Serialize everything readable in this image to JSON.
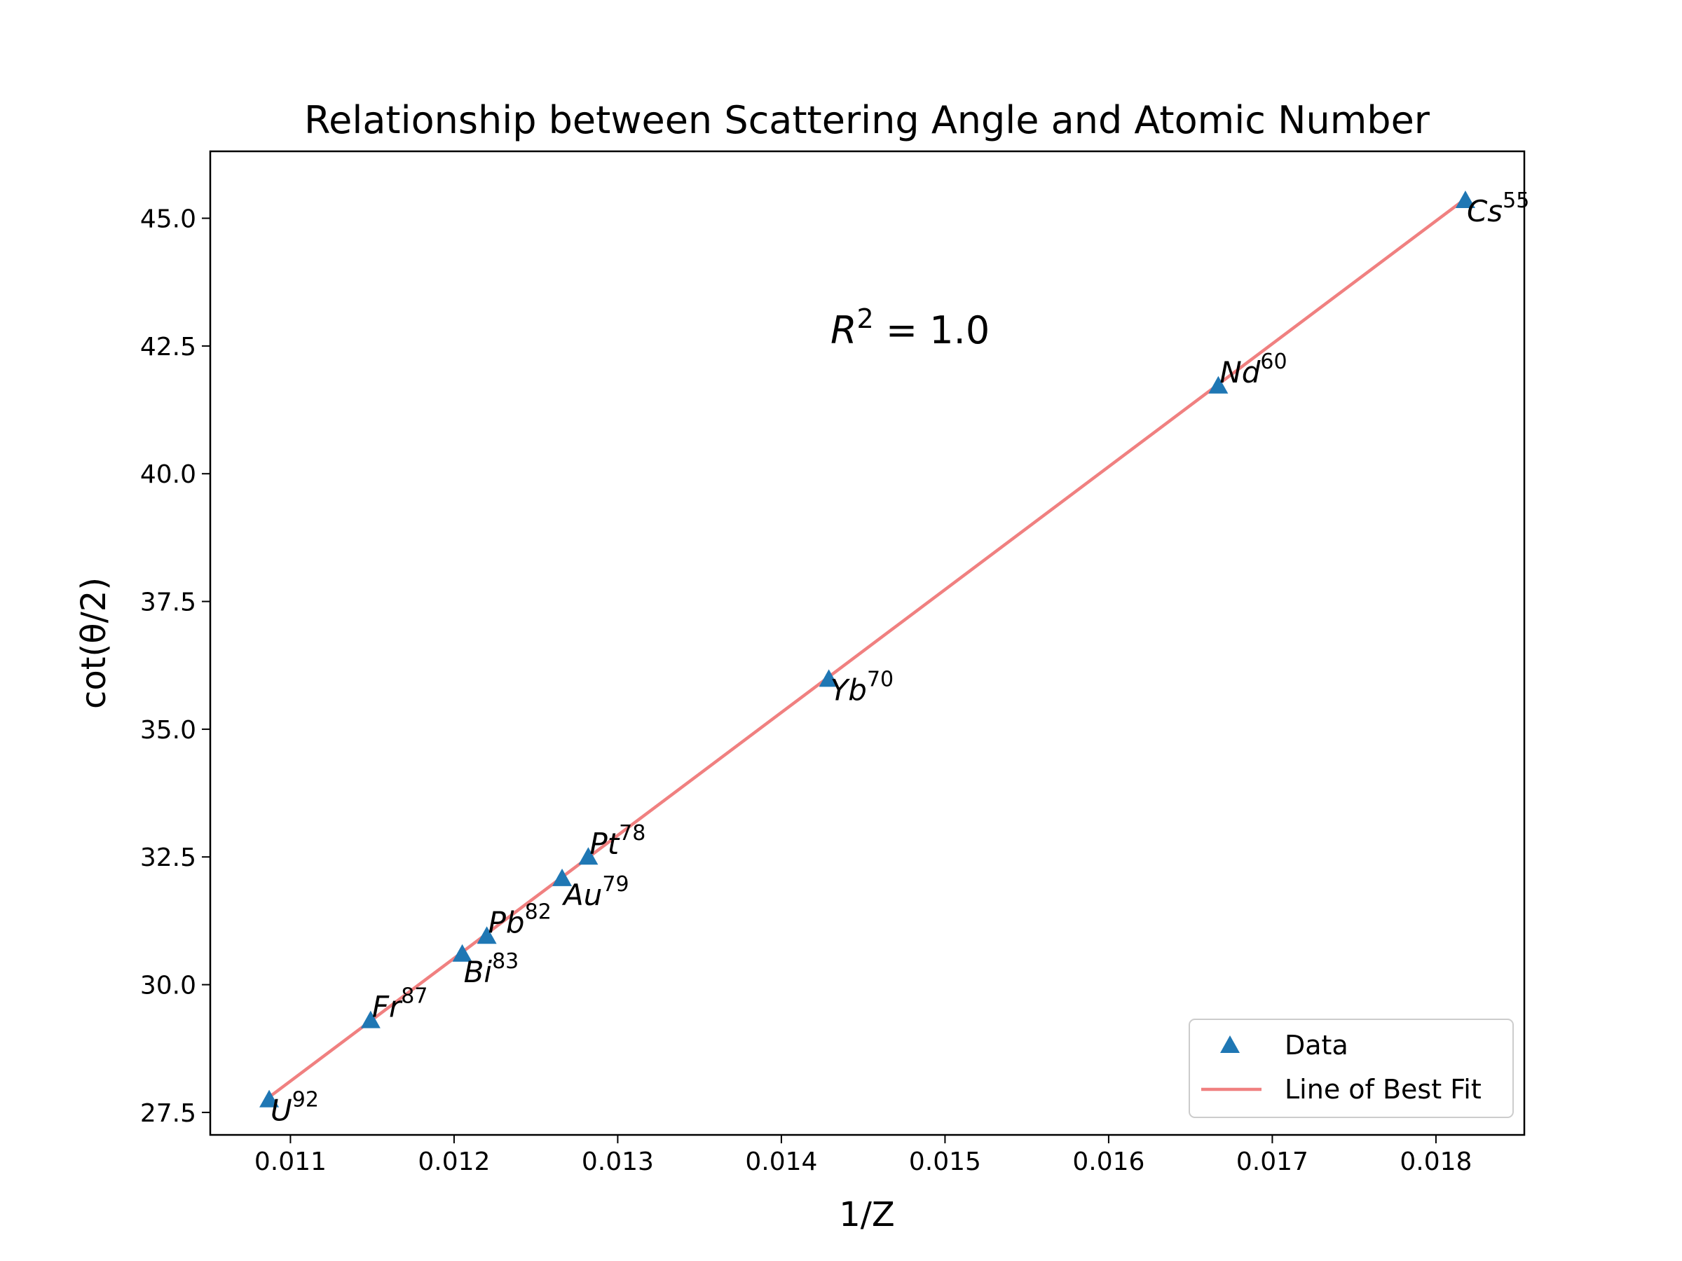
{
  "chart_data": {
    "type": "scatter",
    "title": "Relationship between Scattering Angle and Atomic Number",
    "xlabel": "1/Z",
    "ylabel": "cot(θ/2)",
    "xlim": [
      0.01051,
      0.01854
    ],
    "ylim": [
      27.06,
      46.31
    ],
    "x_ticks": [
      0.011,
      0.012,
      0.013,
      0.014,
      0.015,
      0.016,
      0.017,
      0.018
    ],
    "y_ticks": [
      27.5,
      30.0,
      32.5,
      35.0,
      37.5,
      40.0,
      42.5,
      45.0
    ],
    "grid": false,
    "legend": "lower right",
    "annotation": {
      "symbol": "R",
      "power": "2",
      "text": " = 1.0"
    },
    "series": [
      {
        "name": "Data",
        "kind": "scatter",
        "marker": "triangle",
        "color": "#1f77b4",
        "points": [
          {
            "element": "U",
            "z": "92",
            "x": 0.01087,
            "y": 27.75
          },
          {
            "element": "Fr",
            "z": "87",
            "x": 0.01149,
            "y": 29.3
          },
          {
            "element": "Bi",
            "z": "83",
            "x": 0.01205,
            "y": 30.6
          },
          {
            "element": "Pb",
            "z": "82",
            "x": 0.0122,
            "y": 30.95
          },
          {
            "element": "Au",
            "z": "79",
            "x": 0.01266,
            "y": 32.08
          },
          {
            "element": "Pt",
            "z": "78",
            "x": 0.01282,
            "y": 32.5
          },
          {
            "element": "Yb",
            "z": "70",
            "x": 0.01429,
            "y": 35.98
          },
          {
            "element": "Nd",
            "z": "60",
            "x": 0.01667,
            "y": 41.72
          },
          {
            "element": "Cs",
            "z": "55",
            "x": 0.01818,
            "y": 45.35
          }
        ]
      },
      {
        "name": "Line of Best Fit",
        "kind": "line",
        "color": "#f08080",
        "points": [
          {
            "x": 0.01087,
            "y": 27.8
          },
          {
            "x": 0.01818,
            "y": 45.38
          }
        ]
      }
    ]
  }
}
